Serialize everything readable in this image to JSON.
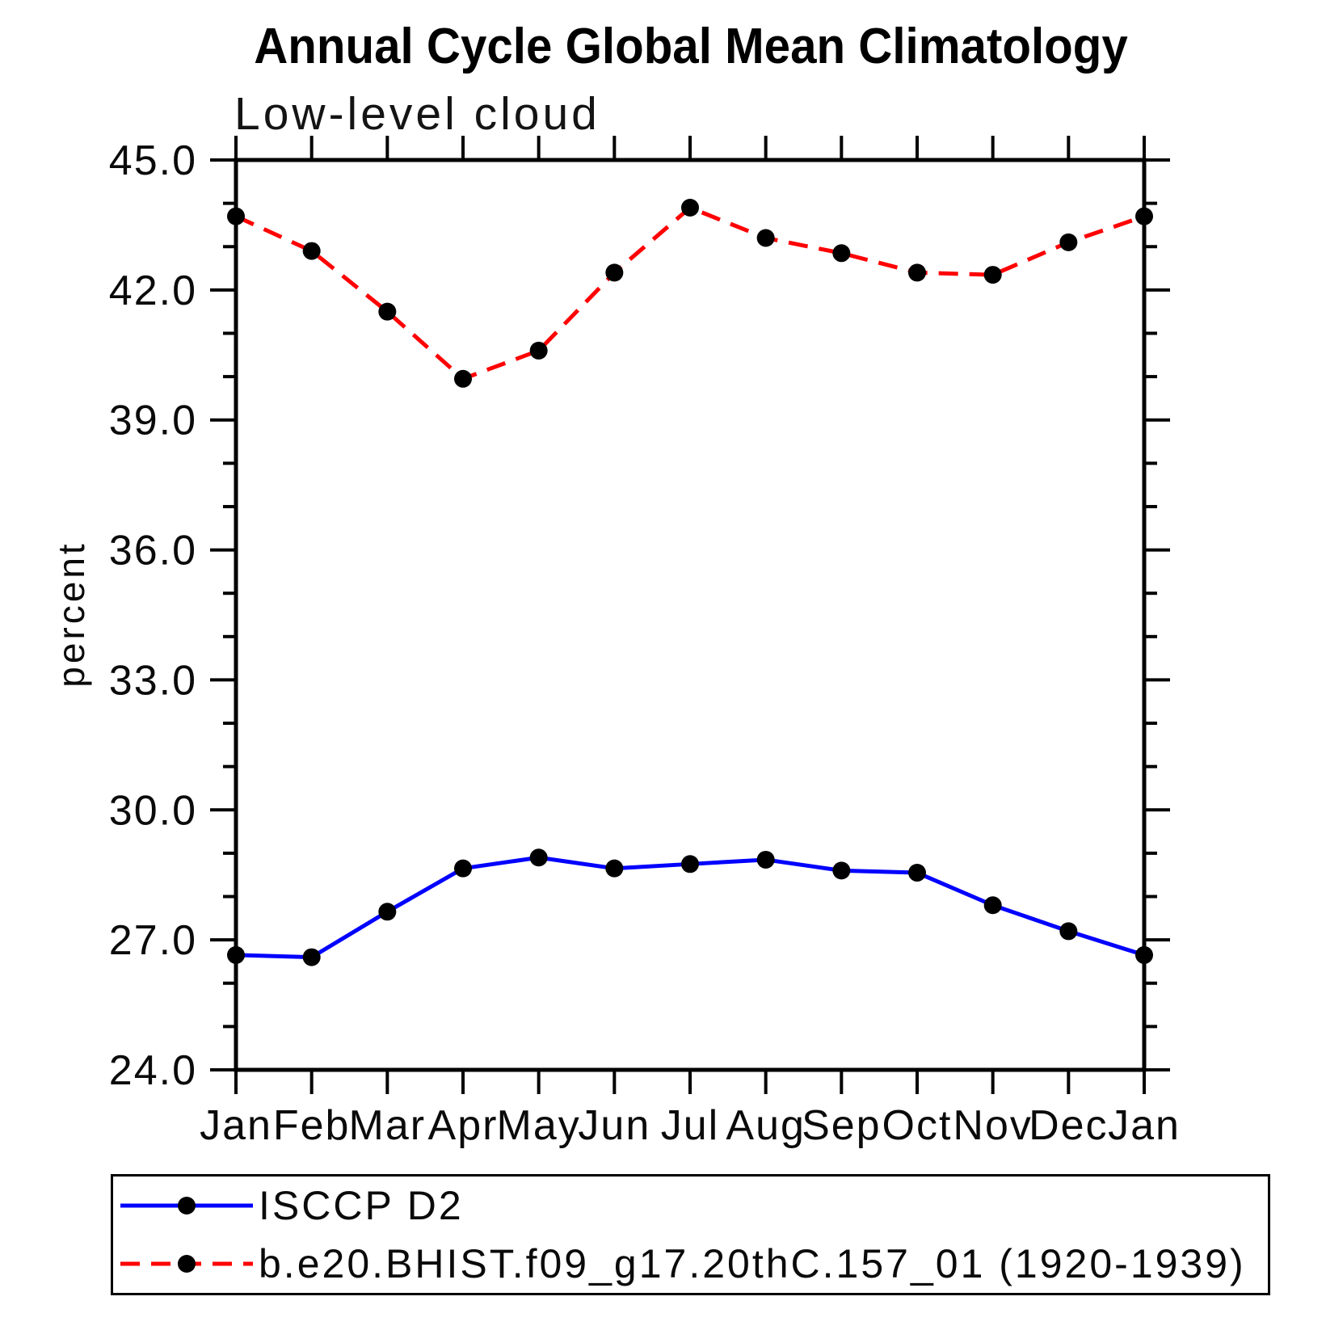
{
  "page": {
    "background": "#ffffff"
  },
  "chart_data": {
    "type": "line",
    "title": "Annual Cycle Global Mean Climatology",
    "subtitle": "Low-level cloud",
    "ylabel": "percent",
    "ylim": [
      24.0,
      45.0
    ],
    "ytick_step_major": 3.0,
    "ytick_step_minor": 1.0,
    "ytick_labels": [
      "24.0",
      "27.0",
      "30.0",
      "33.0",
      "36.0",
      "39.0",
      "42.0",
      "45.0"
    ],
    "categories": [
      "Jan",
      "Feb",
      "Mar",
      "Apr",
      "May",
      "Jun",
      "Jul",
      "Aug",
      "Sep",
      "Oct",
      "Nov",
      "Dec",
      "Jan"
    ],
    "series": [
      {
        "name": "ISCCP D2",
        "color": "#0000ff",
        "line_style": "solid",
        "marker": "filled-circle",
        "marker_color": "#000000",
        "values": [
          26.65,
          26.6,
          27.65,
          28.65,
          28.9,
          28.65,
          28.75,
          28.85,
          28.6,
          28.55,
          27.8,
          27.2,
          26.65
        ]
      },
      {
        "name": "b.e20.BHIST.f09_g17.20thC.157_01 (1920-1939)",
        "color": "#ff0000",
        "line_style": "dashed",
        "marker": "filled-circle",
        "marker_color": "#000000",
        "values": [
          43.7,
          42.9,
          41.5,
          39.95,
          40.6,
          42.4,
          43.9,
          43.2,
          42.85,
          42.4,
          42.35,
          43.1,
          43.7
        ]
      }
    ],
    "grid": false,
    "axis_color": "#000000",
    "legend_position": "bottom-left-box"
  }
}
